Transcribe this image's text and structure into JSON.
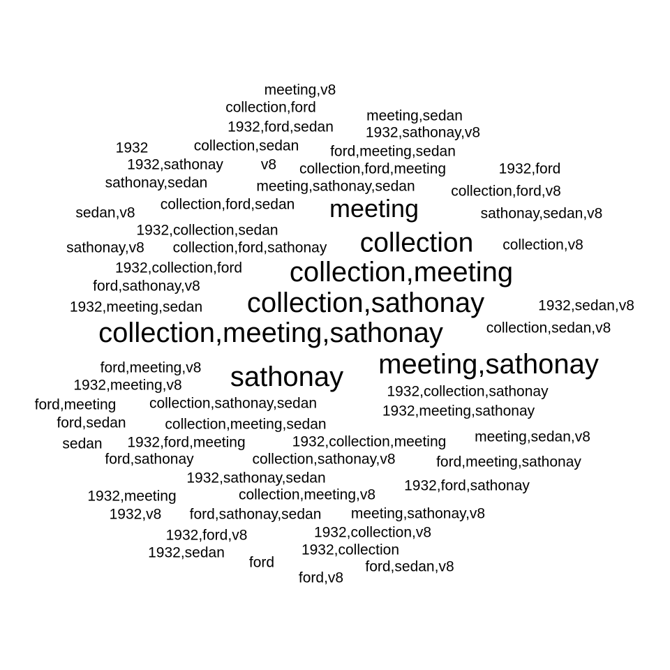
{
  "words": [
    {
      "text": "meeting,v8",
      "weight": 1
    },
    {
      "text": "collection,ford",
      "weight": 1
    },
    {
      "text": "meeting,sedan",
      "weight": 1
    },
    {
      "text": "1932,ford,sedan",
      "weight": 1
    },
    {
      "text": "1932,sathonay,v8",
      "weight": 1
    },
    {
      "text": "1932",
      "weight": 1
    },
    {
      "text": "collection,sedan",
      "weight": 1
    },
    {
      "text": "ford,meeting,sedan",
      "weight": 1
    },
    {
      "text": "1932,sathonay",
      "weight": 1
    },
    {
      "text": "v8",
      "weight": 1
    },
    {
      "text": "collection,ford,meeting",
      "weight": 1
    },
    {
      "text": "1932,ford",
      "weight": 1
    },
    {
      "text": "sathonay,sedan",
      "weight": 1
    },
    {
      "text": "meeting,sathonay,sedan",
      "weight": 1
    },
    {
      "text": "collection,ford,v8",
      "weight": 1
    },
    {
      "text": "sedan,v8",
      "weight": 1
    },
    {
      "text": "collection,ford,sedan",
      "weight": 1
    },
    {
      "text": "meeting",
      "weight": 2
    },
    {
      "text": "sathonay,sedan,v8",
      "weight": 1
    },
    {
      "text": "1932,collection,sedan",
      "weight": 1
    },
    {
      "text": "sathonay,v8",
      "weight": 1
    },
    {
      "text": "collection,ford,sathonay",
      "weight": 1
    },
    {
      "text": "collection",
      "weight": 3
    },
    {
      "text": "collection,v8",
      "weight": 1
    },
    {
      "text": "1932,collection,ford",
      "weight": 1
    },
    {
      "text": "collection,meeting",
      "weight": 3
    },
    {
      "text": "ford,sathonay,v8",
      "weight": 1
    },
    {
      "text": "1932,meeting,sedan",
      "weight": 1
    },
    {
      "text": "collection,sathonay",
      "weight": 3
    },
    {
      "text": "1932,sedan,v8",
      "weight": 1
    },
    {
      "text": "collection,meeting,sathonay",
      "weight": 3
    },
    {
      "text": "collection,sedan,v8",
      "weight": 1
    },
    {
      "text": "ford,meeting,v8",
      "weight": 1
    },
    {
      "text": "sathonay",
      "weight": 3
    },
    {
      "text": "meeting,sathonay",
      "weight": 3
    },
    {
      "text": "1932,meeting,v8",
      "weight": 1
    },
    {
      "text": "1932,collection,sathonay",
      "weight": 1
    },
    {
      "text": "ford,meeting",
      "weight": 1
    },
    {
      "text": "collection,sathonay,sedan",
      "weight": 1
    },
    {
      "text": "1932,meeting,sathonay",
      "weight": 1
    },
    {
      "text": "ford,sedan",
      "weight": 1
    },
    {
      "text": "collection,meeting,sedan",
      "weight": 1
    },
    {
      "text": "sedan",
      "weight": 1
    },
    {
      "text": "1932,ford,meeting",
      "weight": 1
    },
    {
      "text": "1932,collection,meeting",
      "weight": 1
    },
    {
      "text": "meeting,sedan,v8",
      "weight": 1
    },
    {
      "text": "ford,sathonay",
      "weight": 1
    },
    {
      "text": "collection,sathonay,v8",
      "weight": 1
    },
    {
      "text": "ford,meeting,sathonay",
      "weight": 1
    },
    {
      "text": "1932,sathonay,sedan",
      "weight": 1
    },
    {
      "text": "1932,ford,sathonay",
      "weight": 1
    },
    {
      "text": "1932,meeting",
      "weight": 1
    },
    {
      "text": "collection,meeting,v8",
      "weight": 1
    },
    {
      "text": "1932,v8",
      "weight": 1
    },
    {
      "text": "ford,sathonay,sedan",
      "weight": 1
    },
    {
      "text": "meeting,sathonay,v8",
      "weight": 1
    },
    {
      "text": "1932,ford,v8",
      "weight": 1
    },
    {
      "text": "1932,collection,v8",
      "weight": 1
    },
    {
      "text": "1932,sedan",
      "weight": 1
    },
    {
      "text": "ford",
      "weight": 1
    },
    {
      "text": "1932,collection",
      "weight": 1
    },
    {
      "text": "ford,sedan,v8",
      "weight": 1
    },
    {
      "text": "ford,v8",
      "weight": 1
    }
  ]
}
